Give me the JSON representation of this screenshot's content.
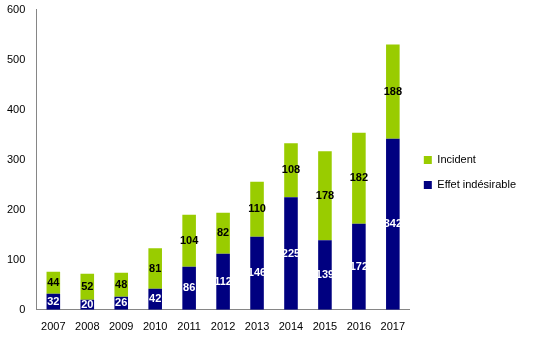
{
  "chart_data": {
    "type": "bar",
    "categories": [
      "2007",
      "2008",
      "2009",
      "2010",
      "2011",
      "2012",
      "2013",
      "2014",
      "2015",
      "2016",
      "2017"
    ],
    "series": [
      {
        "name": "Effet indésirable",
        "color": "#000080",
        "values": [
          32,
          20,
          26,
          42,
          86,
          112,
          146,
          225,
          139,
          172,
          342
        ]
      },
      {
        "name": "Incident",
        "color": "#99cc00",
        "values": [
          44,
          52,
          48,
          81,
          104,
          82,
          110,
          108,
          178,
          182,
          188
        ]
      }
    ],
    "stacked": true,
    "data_labels": true,
    "legend": "right",
    "grid": false,
    "ylim": [
      0,
      600
    ],
    "yticks": [
      0,
      100,
      200,
      300,
      400,
      500,
      600
    ]
  }
}
